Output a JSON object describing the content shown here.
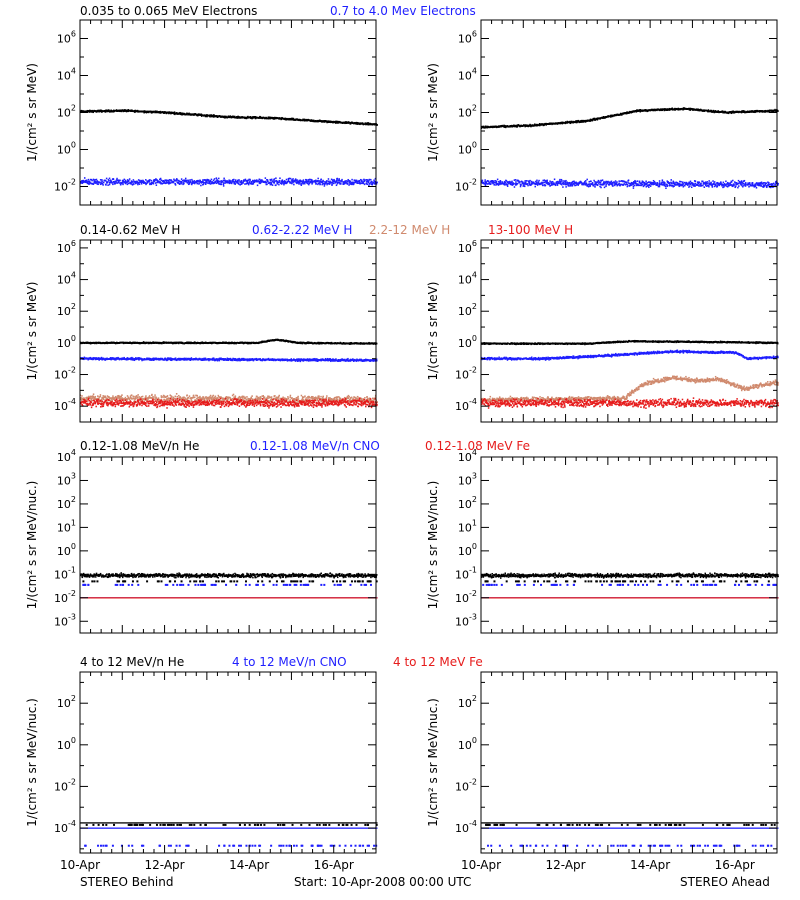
{
  "colors": {
    "black": "#000000",
    "blue": "#1f1fff",
    "salmon": "#d08a6e",
    "red": "#e61c1c"
  },
  "footer": {
    "left": "STEREO Behind",
    "center": "Start: 10-Apr-2008 00:00 UTC",
    "right": "STEREO Ahead"
  },
  "chart_data": [
    {
      "type": "scatter",
      "row": 1,
      "spacecraft": "STEREO Behind",
      "ylabel": "1/(cm² s sr MeV)",
      "yscale": "log",
      "ylim_exp": [
        -3,
        7
      ],
      "ytick_exps": [
        -2,
        0,
        2,
        4,
        6
      ],
      "xticks": [
        "10-Apr",
        "12-Apr",
        "14-Apr",
        "16-Apr"
      ],
      "x_days": [
        0,
        7
      ],
      "series": [
        {
          "name": "0.035 to 0.065 MeV Electrons",
          "color": "black",
          "points": [
            [
              0,
              2.05
            ],
            [
              1,
              2.1
            ],
            [
              2,
              2.0
            ],
            [
              3.5,
              1.75
            ],
            [
              4.5,
              1.7
            ],
            [
              5.5,
              1.55
            ],
            [
              7,
              1.35
            ]
          ],
          "scatter": 0.07
        },
        {
          "name": "0.7 to 4.0 Mev Electrons",
          "color": "blue",
          "points": [
            [
              0,
              -1.75
            ],
            [
              7,
              -1.75
            ]
          ],
          "scatter": 0.25
        }
      ]
    },
    {
      "type": "scatter",
      "row": 1,
      "spacecraft": "STEREO Ahead",
      "ylabel": "1/(cm² s sr MeV)",
      "yscale": "log",
      "ylim_exp": [
        -3,
        7
      ],
      "ytick_exps": [
        -2,
        0,
        2,
        4,
        6
      ],
      "xticks": [
        "10-Apr",
        "12-Apr",
        "14-Apr",
        "16-Apr"
      ],
      "x_days": [
        0,
        7
      ],
      "series": [
        {
          "name": "0.035 to 0.065 MeV Electrons",
          "color": "black",
          "points": [
            [
              0,
              1.2
            ],
            [
              1.2,
              1.3
            ],
            [
              2.5,
              1.55
            ],
            [
              3.7,
              2.1
            ],
            [
              4.8,
              2.2
            ],
            [
              5.8,
              2.0
            ],
            [
              7,
              2.1
            ]
          ],
          "scatter": 0.07
        },
        {
          "name": "0.7 to 4.0 Mev Electrons",
          "color": "blue",
          "points": [
            [
              0,
              -1.8
            ],
            [
              7,
              -1.9
            ]
          ],
          "scatter": 0.25
        }
      ]
    },
    {
      "type": "scatter",
      "row": 2,
      "spacecraft": "STEREO Behind",
      "ylabel": "1/(cm² s sr MeV)",
      "yscale": "log",
      "ylim_exp": [
        -5,
        6.5
      ],
      "ytick_exps": [
        -4,
        -2,
        0,
        2,
        4,
        6
      ],
      "xticks": [
        "10-Apr",
        "12-Apr",
        "14-Apr",
        "16-Apr"
      ],
      "x_days": [
        0,
        7
      ],
      "series": [
        {
          "name": "0.14-0.62 MeV H",
          "color": "black",
          "points": [
            [
              0,
              0.0
            ],
            [
              4.2,
              0.0
            ],
            [
              4.6,
              0.2
            ],
            [
              5.2,
              0.0
            ],
            [
              7,
              -0.05
            ]
          ],
          "scatter": 0.06
        },
        {
          "name": "0.62-2.22 MeV H",
          "color": "blue",
          "points": [
            [
              0,
              -1.0
            ],
            [
              7,
              -1.1
            ]
          ],
          "scatter": 0.1
        },
        {
          "name": "2.2-12 MeV H",
          "color": "salmon",
          "points": [
            [
              0,
              -3.5
            ],
            [
              7,
              -3.6
            ]
          ],
          "scatter": 0.35
        },
        {
          "name": "13-100 MeV H",
          "color": "red",
          "points": [
            [
              0,
              -3.8
            ],
            [
              7,
              -3.8
            ]
          ],
          "scatter": 0.35
        }
      ]
    },
    {
      "type": "scatter",
      "row": 2,
      "spacecraft": "STEREO Ahead",
      "ylabel": "1/(cm² s sr MeV)",
      "yscale": "log",
      "ylim_exp": [
        -5,
        6.5
      ],
      "ytick_exps": [
        -4,
        -2,
        0,
        2,
        4,
        6
      ],
      "xticks": [
        "10-Apr",
        "12-Apr",
        "14-Apr",
        "16-Apr"
      ],
      "x_days": [
        0,
        7
      ],
      "series": [
        {
          "name": "0.14-0.62 MeV H",
          "color": "black",
          "points": [
            [
              0,
              -0.05
            ],
            [
              2.5,
              -0.05
            ],
            [
              3.5,
              0.1
            ],
            [
              5.5,
              0.05
            ],
            [
              7,
              0.0
            ]
          ],
          "scatter": 0.06
        },
        {
          "name": "0.62-2.22 MeV H",
          "color": "blue",
          "points": [
            [
              0,
              -1.0
            ],
            [
              1.5,
              -1.0
            ],
            [
              3.0,
              -0.8
            ],
            [
              4.5,
              -0.55
            ],
            [
              5.5,
              -0.6
            ],
            [
              6.0,
              -0.6
            ],
            [
              6.3,
              -1.0
            ],
            [
              7,
              -0.9
            ]
          ],
          "scatter": 0.1
        },
        {
          "name": "2.2-12 MeV H",
          "color": "salmon",
          "points": [
            [
              0,
              -3.6
            ],
            [
              3.4,
              -3.5
            ],
            [
              3.8,
              -2.6
            ],
            [
              4.5,
              -2.2
            ],
            [
              5.2,
              -2.4
            ],
            [
              5.6,
              -2.3
            ],
            [
              6.2,
              -2.9
            ],
            [
              7,
              -2.5
            ]
          ],
          "scatter": 0.2
        },
        {
          "name": "13-100 MeV H",
          "color": "red",
          "points": [
            [
              0,
              -3.8
            ],
            [
              7,
              -3.8
            ]
          ],
          "scatter": 0.35
        }
      ]
    },
    {
      "type": "scatter",
      "row": 3,
      "spacecraft": "STEREO Behind",
      "ylabel": "1/(cm² s sr MeV/nuc.)",
      "yscale": "log",
      "ylim_exp": [
        -3.5,
        4
      ],
      "ytick_exps": [
        -3,
        -2,
        -1,
        0,
        1,
        2,
        3,
        4
      ],
      "xticks": [
        "10-Apr",
        "12-Apr",
        "14-Apr",
        "16-Apr"
      ],
      "x_days": [
        0,
        7
      ],
      "series": [
        {
          "name": "0.12-1.08 MeV/n He",
          "color": "black",
          "points": [
            [
              0,
              -1.05
            ],
            [
              7,
              -1.05
            ]
          ],
          "scatter": 0.12,
          "floor": -1.3
        },
        {
          "name": "0.12-1.08 MeV/n CNO",
          "color": "blue",
          "points": [
            [
              0,
              -2.0
            ],
            [
              7,
              -2.0
            ]
          ],
          "scatter": 0.0,
          "floor": -1.6
        },
        {
          "name": "0.12-1.08 MeV Fe",
          "color": "red",
          "points": [
            [
              0,
              -2.0
            ],
            [
              7,
              -2.0
            ]
          ],
          "scatter": 0.0
        }
      ]
    },
    {
      "type": "scatter",
      "row": 3,
      "spacecraft": "STEREO Ahead",
      "ylabel": "1/(cm² s sr MeV/nuc.)",
      "yscale": "log",
      "ylim_exp": [
        -3.5,
        4
      ],
      "ytick_exps": [
        -3,
        -2,
        -1,
        0,
        1,
        2,
        3,
        4
      ],
      "xticks": [
        "10-Apr",
        "12-Apr",
        "14-Apr",
        "16-Apr"
      ],
      "x_days": [
        0,
        7
      ],
      "series": [
        {
          "name": "0.12-1.08 MeV/n He",
          "color": "black",
          "points": [
            [
              0,
              -1.05
            ],
            [
              7,
              -1.05
            ]
          ],
          "scatter": 0.12,
          "floor": -1.3
        },
        {
          "name": "0.12-1.08 MeV/n CNO",
          "color": "blue",
          "points": [
            [
              0,
              -2.0
            ],
            [
              7,
              -2.0
            ]
          ],
          "scatter": 0.0,
          "floor": -1.6
        },
        {
          "name": "0.12-1.08 MeV Fe",
          "color": "red",
          "points": [
            [
              0,
              -2.0
            ],
            [
              7,
              -2.0
            ]
          ],
          "scatter": 0.0
        }
      ]
    },
    {
      "type": "scatter",
      "row": 4,
      "spacecraft": "STEREO Behind",
      "ylabel": "1/(cm² s sr MeV/nuc.)",
      "yscale": "log",
      "ylim_exp": [
        -5.2,
        3.5
      ],
      "ytick_exps": [
        -4,
        -2,
        0,
        2
      ],
      "xticks": [
        "10-Apr",
        "12-Apr",
        "14-Apr",
        "16-Apr"
      ],
      "x_days": [
        0,
        7
      ],
      "series": [
        {
          "name": "4 to 12 MeV/n He",
          "color": "black",
          "points": [
            [
              0,
              -3.75
            ],
            [
              7,
              -3.75
            ]
          ],
          "scatter": 0.0,
          "floor": -4.0
        },
        {
          "name": "4 to 12 MeV/n CNO",
          "color": "blue",
          "points": [
            [
              0,
              -4.0
            ],
            [
              7,
              -4.0
            ]
          ],
          "scatter": 0.0,
          "floor": -5.0
        },
        {
          "name": "4 to 12 MeV Fe",
          "color": "red",
          "points": [],
          "scatter": 0.0
        }
      ]
    },
    {
      "type": "scatter",
      "row": 4,
      "spacecraft": "STEREO Ahead",
      "ylabel": "1/(cm² s sr MeV/nuc.)",
      "yscale": "log",
      "ylim_exp": [
        -5.2,
        3.5
      ],
      "ytick_exps": [
        -4,
        -2,
        0,
        2
      ],
      "xticks": [
        "10-Apr",
        "12-Apr",
        "14-Apr",
        "16-Apr"
      ],
      "x_days": [
        0,
        7
      ],
      "series": [
        {
          "name": "4 to 12 MeV/n He",
          "color": "black",
          "points": [
            [
              0,
              -3.75
            ],
            [
              7,
              -3.75
            ]
          ],
          "scatter": 0.0,
          "floor": -4.0
        },
        {
          "name": "4 to 12 MeV/n CNO",
          "color": "blue",
          "points": [
            [
              0,
              -4.0
            ],
            [
              7,
              -4.0
            ]
          ],
          "scatter": 0.0,
          "floor": -5.0
        },
        {
          "name": "4 to 12 MeV Fe",
          "color": "red",
          "points": [],
          "scatter": 0.0
        }
      ]
    }
  ]
}
